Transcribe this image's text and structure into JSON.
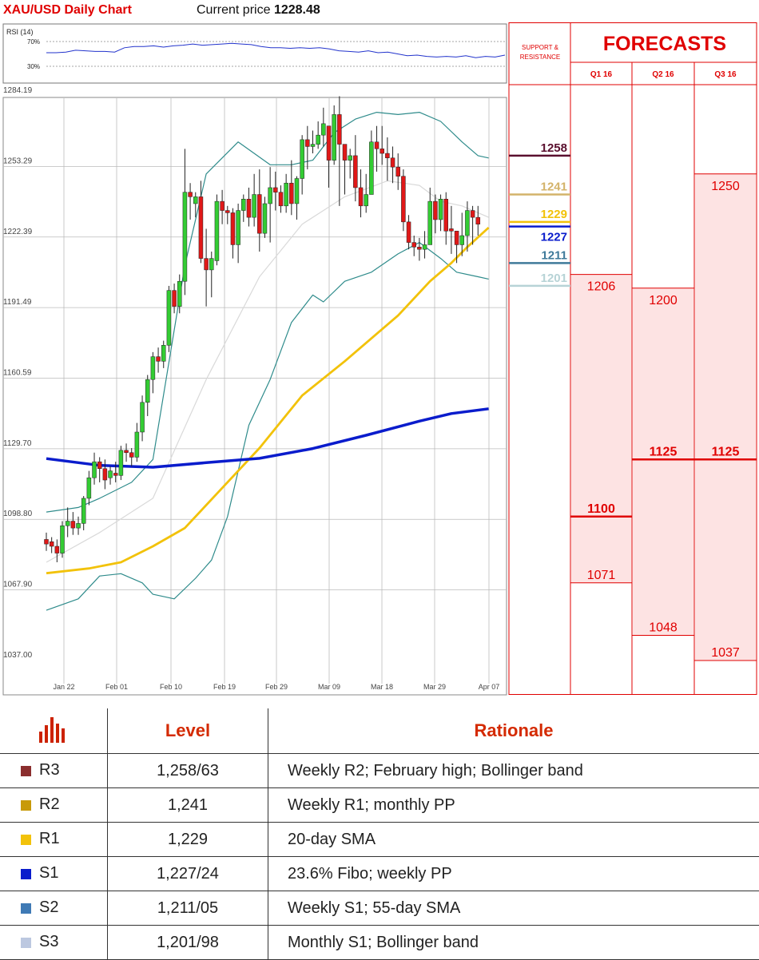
{
  "header": {
    "title": "XAU/USD Daily Chart",
    "price_label": "Current price",
    "price_value": "1228.48"
  },
  "rsi": {
    "label": "RSI (14)",
    "levels": [
      "70%",
      "30%"
    ],
    "values": [
      52,
      52,
      53,
      56,
      55,
      54,
      54,
      53,
      60,
      62,
      62,
      63,
      61,
      63,
      64,
      66,
      64,
      65,
      66,
      67,
      66,
      65,
      62,
      60,
      60,
      59,
      60,
      59,
      60,
      58,
      55,
      54,
      53,
      55,
      52,
      53,
      50,
      47,
      48,
      46,
      45,
      46,
      45,
      47,
      44,
      46,
      45,
      48
    ]
  },
  "chart_data": {
    "type": "candlestick",
    "title": "XAU/USD Daily Chart",
    "y_ticks": [
      "1284.19",
      "1253.29",
      "1222.39",
      "1191.49",
      "1160.59",
      "1129.70",
      "1098.80",
      "1067.90",
      "1037.00"
    ],
    "ylim": [
      1037.0,
      1284.19
    ],
    "x_ticks": [
      "Jan 22",
      "Feb 01",
      "Feb 10",
      "Feb 19",
      "Feb 29",
      "Mar 09",
      "Mar 18",
      "Mar 29",
      "Apr 07"
    ],
    "candles": [
      [
        1090,
        1088,
        1093,
        1085
      ],
      [
        1089,
        1087,
        1091,
        1084
      ],
      [
        1087,
        1084,
        1090,
        1080
      ],
      [
        1084,
        1096,
        1098,
        1082
      ],
      [
        1096,
        1098,
        1104,
        1091
      ],
      [
        1098,
        1095,
        1102,
        1092
      ],
      [
        1095,
        1097,
        1100,
        1092
      ],
      [
        1097,
        1108,
        1109,
        1094
      ],
      [
        1108,
        1117,
        1120,
        1105
      ],
      [
        1117,
        1124,
        1128,
        1114
      ],
      [
        1124,
        1121,
        1126,
        1115
      ],
      [
        1121,
        1116,
        1125,
        1112
      ],
      [
        1117,
        1120,
        1122,
        1114
      ],
      [
        1119,
        1118,
        1124,
        1115
      ],
      [
        1118,
        1129,
        1131,
        1116
      ],
      [
        1129,
        1128,
        1132,
        1124
      ],
      [
        1128,
        1126,
        1130,
        1122
      ],
      [
        1126,
        1137,
        1141,
        1124
      ],
      [
        1137,
        1150,
        1153,
        1133
      ],
      [
        1150,
        1160,
        1162,
        1144
      ],
      [
        1160,
        1170,
        1172,
        1154
      ],
      [
        1170,
        1168,
        1174,
        1163
      ],
      [
        1168,
        1175,
        1177,
        1165
      ],
      [
        1175,
        1199,
        1201,
        1172
      ],
      [
        1199,
        1192,
        1202,
        1189
      ],
      [
        1192,
        1203,
        1206,
        1189
      ],
      [
        1203,
        1242,
        1261,
        1197
      ],
      [
        1242,
        1240,
        1246,
        1230
      ],
      [
        1237,
        1240,
        1242,
        1231
      ],
      [
        1240,
        1213,
        1247,
        1211
      ],
      [
        1213,
        1208,
        1226,
        1192
      ],
      [
        1208,
        1213,
        1216,
        1196
      ],
      [
        1212,
        1238,
        1241,
        1210
      ],
      [
        1238,
        1234,
        1243,
        1228
      ],
      [
        1234,
        1233,
        1236,
        1228
      ],
      [
        1233,
        1219,
        1235,
        1213
      ],
      [
        1219,
        1234,
        1237,
        1211
      ],
      [
        1234,
        1239,
        1241,
        1229
      ],
      [
        1239,
        1231,
        1244,
        1227
      ],
      [
        1231,
        1241,
        1250,
        1227
      ],
      [
        1241,
        1224,
        1252,
        1216
      ],
      [
        1224,
        1237,
        1240,
        1222
      ],
      [
        1237,
        1244,
        1253,
        1220
      ],
      [
        1244,
        1242,
        1251,
        1234
      ],
      [
        1242,
        1236,
        1245,
        1233
      ],
      [
        1236,
        1246,
        1250,
        1233
      ],
      [
        1246,
        1237,
        1256,
        1232
      ],
      [
        1237,
        1248,
        1249,
        1230
      ],
      [
        1248,
        1265,
        1267,
        1241
      ],
      [
        1265,
        1262,
        1271,
        1252
      ],
      [
        1262,
        1263,
        1269,
        1259
      ],
      [
        1263,
        1267,
        1273,
        1261
      ],
      [
        1267,
        1272,
        1279,
        1262
      ],
      [
        1271,
        1256,
        1271,
        1244
      ],
      [
        1256,
        1276,
        1280,
        1254
      ],
      [
        1276,
        1263,
        1284,
        1236
      ],
      [
        1263,
        1256,
        1261,
        1241
      ],
      [
        1256,
        1258,
        1261,
        1248
      ],
      [
        1258,
        1244,
        1267,
        1238
      ],
      [
        1244,
        1236,
        1252,
        1231
      ],
      [
        1236,
        1241,
        1250,
        1233
      ],
      [
        1241,
        1264,
        1269,
        1241
      ],
      [
        1264,
        1261,
        1271,
        1251
      ],
      [
        1261,
        1259,
        1271,
        1254
      ],
      [
        1259,
        1257,
        1266,
        1247
      ],
      [
        1257,
        1253,
        1262,
        1246
      ],
      [
        1253,
        1249,
        1259,
        1243
      ],
      [
        1249,
        1229,
        1252,
        1225
      ],
      [
        1229,
        1220,
        1232,
        1217
      ],
      [
        1220,
        1218,
        1223,
        1214
      ],
      [
        1218,
        1217,
        1222,
        1212
      ],
      [
        1217,
        1219,
        1225,
        1213
      ],
      [
        1219,
        1238,
        1244,
        1219
      ],
      [
        1238,
        1230,
        1241,
        1224
      ],
      [
        1230,
        1239,
        1241,
        1225
      ],
      [
        1239,
        1225,
        1242,
        1219
      ],
      [
        1226,
        1225,
        1236,
        1215
      ],
      [
        1225,
        1219,
        1225,
        1211
      ],
      [
        1219,
        1223,
        1233,
        1214
      ],
      [
        1223,
        1234,
        1238,
        1216
      ],
      [
        1234,
        1231,
        1236,
        1219
      ],
      [
        1231,
        1228,
        1236,
        1223
      ]
    ],
    "series": [
      {
        "name": "",
        "color": "#0a1ccc",
        "width": 3.5,
        "values": [
          [
            0,
            1125.4
          ],
          [
            10,
            1122.4
          ],
          [
            20,
            1121.6
          ],
          [
            30,
            1123.6
          ],
          [
            40,
            1125.5
          ],
          [
            50,
            1129.8
          ],
          [
            60,
            1135.6
          ],
          [
            70,
            1141.8
          ],
          [
            76,
            1145.1
          ],
          [
            83,
            1147.2
          ]
        ]
      },
      {
        "name": "",
        "color": "#f2c20a",
        "width": 2.8,
        "values": [
          [
            0,
            1075.2
          ],
          [
            8,
            1077.3
          ],
          [
            14,
            1080.0
          ],
          [
            20,
            1087.0
          ],
          [
            26,
            1095.0
          ],
          [
            32,
            1110.0
          ],
          [
            40,
            1130.0
          ],
          [
            48,
            1153.0
          ],
          [
            56,
            1168.0
          ],
          [
            66,
            1188.0
          ],
          [
            72,
            1203.0
          ],
          [
            76,
            1211.0
          ],
          [
            79,
            1218.0
          ],
          [
            83,
            1226.5
          ]
        ]
      },
      {
        "name": "",
        "color": "#2e8b8b",
        "width": 1.2,
        "values": [
          [
            0,
            1059.0
          ],
          [
            6,
            1064.0
          ],
          [
            10,
            1074.0
          ],
          [
            14,
            1075.0
          ],
          [
            18,
            1071.0
          ],
          [
            20,
            1066.0
          ],
          [
            24,
            1064.0
          ],
          [
            28,
            1073.0
          ],
          [
            31,
            1081.0
          ],
          [
            34,
            1100.0
          ],
          [
            38,
            1140.0
          ],
          [
            42,
            1160.0
          ],
          [
            46,
            1185.0
          ],
          [
            50,
            1197.0
          ],
          [
            52,
            1194.0
          ],
          [
            56,
            1203.0
          ],
          [
            61,
            1207.0
          ],
          [
            66,
            1215.0
          ],
          [
            70,
            1220.0
          ],
          [
            74,
            1213.0
          ],
          [
            77,
            1207.0
          ],
          [
            81,
            1205.0
          ],
          [
            83,
            1204.0
          ]
        ]
      },
      {
        "name": "",
        "color": "#2e8b8b",
        "width": 1.2,
        "values": [
          [
            0,
            1102.0
          ],
          [
            6,
            1104.0
          ],
          [
            10,
            1108.0
          ],
          [
            16,
            1115.0
          ],
          [
            20,
            1125.0
          ],
          [
            26,
            1210.0
          ],
          [
            30,
            1250.0
          ],
          [
            36,
            1264.0
          ],
          [
            42,
            1254.0
          ],
          [
            46,
            1254.0
          ],
          [
            50,
            1256.0
          ],
          [
            54,
            1268.0
          ],
          [
            58,
            1274.0
          ],
          [
            62,
            1277.0
          ],
          [
            66,
            1276.0
          ],
          [
            70,
            1277.0
          ],
          [
            74,
            1273.0
          ],
          [
            78,
            1264.0
          ],
          [
            81,
            1258.0
          ],
          [
            83,
            1257.0
          ]
        ]
      },
      {
        "name": "",
        "color": "#d9d9d9",
        "width": 1.2,
        "values": [
          [
            0,
            1080.0
          ],
          [
            10,
            1093.0
          ],
          [
            20,
            1108.0
          ],
          [
            30,
            1160.0
          ],
          [
            40,
            1205.0
          ],
          [
            48,
            1228.0
          ],
          [
            56,
            1240.0
          ],
          [
            64,
            1247.0
          ],
          [
            70,
            1245.0
          ],
          [
            74,
            1238.0
          ],
          [
            78,
            1236.0
          ],
          [
            83,
            1231.0
          ]
        ]
      }
    ]
  },
  "forecast": {
    "sr_label_1": "SUPPORT &",
    "sr_label_2": "RESISTANCE",
    "title": "FORECASTS",
    "columns": [
      "Q1 16",
      "Q2 16",
      "Q3 16"
    ],
    "ranges": [
      {
        "high": "1206",
        "low": "1071",
        "mid": "1100",
        "high_v": 1206,
        "low_v": 1071,
        "mid_v": 1100
      },
      {
        "high": "1200",
        "low": "1048",
        "mid": "1125",
        "high_v": 1200,
        "low_v": 1048,
        "mid_v": 1125
      },
      {
        "high": "1250",
        "low": "1037",
        "mid": "1125",
        "high_v": 1250,
        "low_v": 1037,
        "mid_v": 1125
      }
    ],
    "levels": [
      {
        "label": "1258",
        "value": 1258,
        "color": "#5a0f2e"
      },
      {
        "label": "1241",
        "value": 1241,
        "color": "#d4b36a"
      },
      {
        "label": "1229",
        "value": 1229,
        "color": "#f2c20a"
      },
      {
        "label": "1227",
        "value": 1227,
        "color": "#0a1ccc"
      },
      {
        "label": "1211",
        "value": 1211,
        "color": "#3f7a9a"
      },
      {
        "label": "1201",
        "value": 1201,
        "color": "#b7d3d6"
      }
    ]
  },
  "table": {
    "headers": [
      "Level",
      "Rationale"
    ],
    "rows": [
      {
        "code": "R3",
        "level": "1,258/63",
        "rationale": "Weekly R2; February high; Bollinger band",
        "color": "#8b2e2e"
      },
      {
        "code": "R2",
        "level": "1,241",
        "rationale": "Weekly R1; monthly PP",
        "color": "#c89a08"
      },
      {
        "code": "R1",
        "level": "1,229",
        "rationale": "20-day SMA",
        "color": "#f2c20a"
      },
      {
        "code": "S1",
        "level": "1,227/24",
        "rationale": "23.6% Fibo; weekly PP",
        "color": "#0a1ccc"
      },
      {
        "code": "S2",
        "level": "1,211/05",
        "rationale": "Weekly S1; 55-day SMA",
        "color": "#3f7ab5"
      },
      {
        "code": "S3",
        "level": "1,201/98",
        "rationale": "Monthly S1; Bollinger band",
        "color": "#bcc8e0"
      }
    ]
  },
  "colors": {
    "up": "#33cc33",
    "down": "#e01818",
    "accent": "#e00000"
  }
}
